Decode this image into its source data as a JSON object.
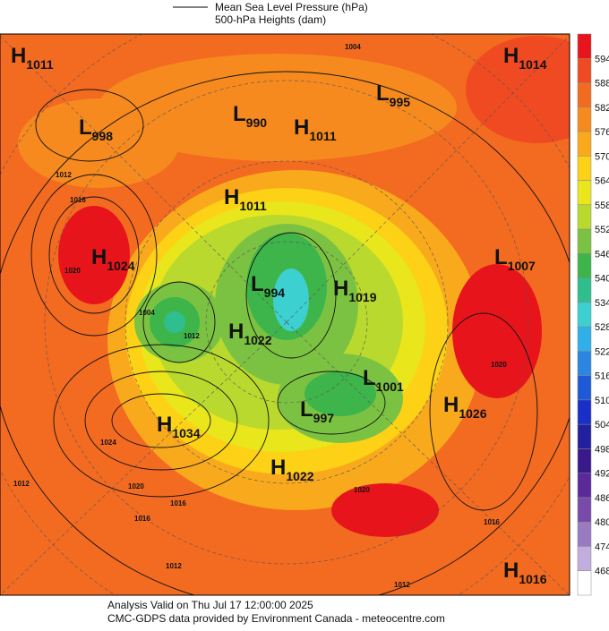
{
  "header": {
    "legend": [
      "Mean Sea Level Pressure (hPa)",
      "500-hPa Heights (dam)"
    ]
  },
  "colorbar": {
    "labels": [
      594,
      588,
      582,
      576,
      570,
      564,
      558,
      552,
      546,
      540,
      534,
      528,
      522,
      516,
      510,
      504,
      498,
      492,
      486,
      480,
      474,
      468
    ],
    "colors": [
      "#e8141c",
      "#f04a22",
      "#f36a21",
      "#f68a1f",
      "#f9a91c",
      "#fcd116",
      "#e9e61c",
      "#b9d92e",
      "#7cc242",
      "#3db54a",
      "#2fbf8f",
      "#3cd0d0",
      "#30b0e8",
      "#2a86e0",
      "#1e5ad8",
      "#1a2fc8",
      "#22209e",
      "#3a1a8a",
      "#5a2a9a",
      "#7a4aaa",
      "#9a7ac0",
      "#c2aede",
      "#fff"
    ]
  },
  "centers": [
    {
      "type": "H",
      "value": 1011
    },
    {
      "type": "H",
      "value": 1014
    },
    {
      "type": "L",
      "value": 995
    },
    {
      "type": "L",
      "value": 990
    },
    {
      "type": "L",
      "value": 998
    },
    {
      "type": "H",
      "value": 1011
    },
    {
      "type": "H",
      "value": 1011
    },
    {
      "type": "L",
      "value": 1007
    },
    {
      "type": "H",
      "value": 1024
    },
    {
      "type": "L",
      "value": 994
    },
    {
      "type": "H",
      "value": 1019
    },
    {
      "type": "H",
      "value": 1022
    },
    {
      "type": "L",
      "value": 1001
    },
    {
      "type": "L",
      "value": 997
    },
    {
      "type": "H",
      "value": 1026
    },
    {
      "type": "H",
      "value": 1034
    },
    {
      "type": "H",
      "value": 1022
    },
    {
      "type": "H",
      "value": 1016
    }
  ],
  "contour_labels": [
    1004,
    1012,
    1016,
    1020,
    1004,
    1012,
    1024,
    1020,
    1016,
    1012,
    1016,
    1012,
    1020,
    1020,
    1016,
    1012
  ],
  "footer": [
    "Analysis Valid on Thu Jul 17 12:00:00 2025",
    "CMC-GDPS data provided by Environment Canada - meteocentre.com"
  ]
}
